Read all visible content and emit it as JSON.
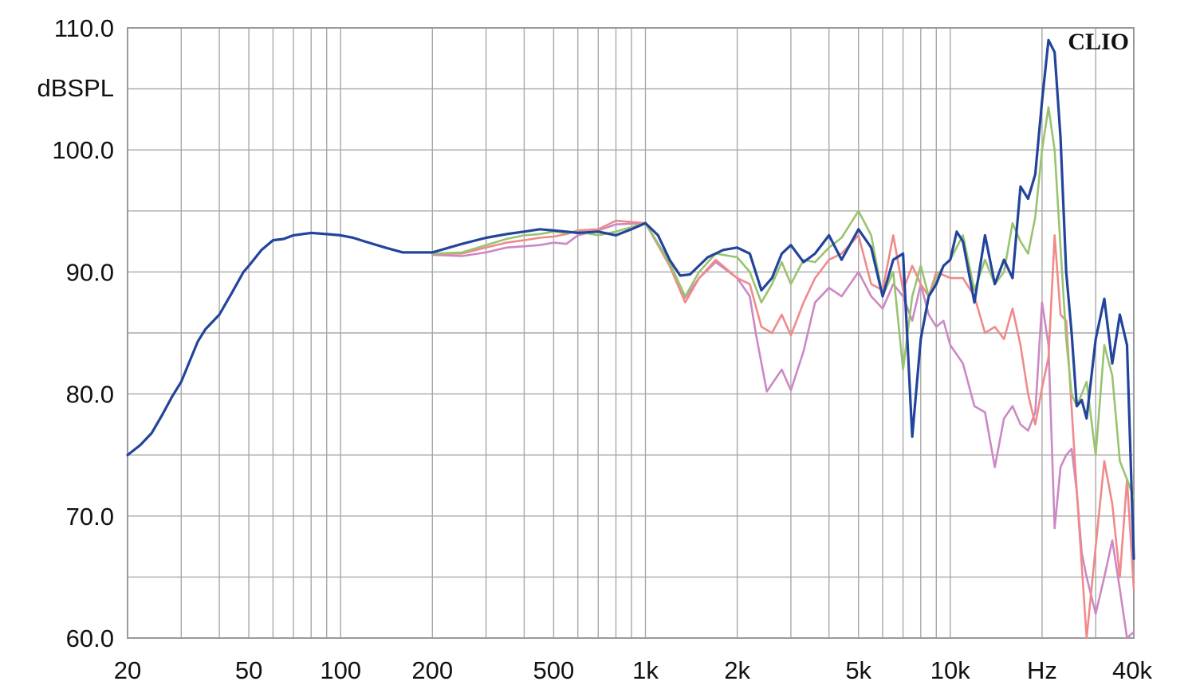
{
  "chart_data": {
    "type": "line",
    "brand": "CLIO",
    "ylabel": "dBSPL",
    "xunit": "Hz",
    "x_scale": "log",
    "xlim": [
      20,
      40000
    ],
    "ylim": [
      60,
      110
    ],
    "grid": true,
    "y_ticks": [
      {
        "value": 110,
        "label": "110.0"
      },
      {
        "value": 100,
        "label": "100.0"
      },
      {
        "value": 90,
        "label": "90.0"
      },
      {
        "value": 80,
        "label": "80.0"
      },
      {
        "value": 70,
        "label": "70.0"
      },
      {
        "value": 60,
        "label": "60.0"
      }
    ],
    "y_grid": [
      60,
      65,
      70,
      75,
      80,
      85,
      90,
      95,
      100,
      105,
      110
    ],
    "x_ticks": [
      {
        "value": 20,
        "label": "20"
      },
      {
        "value": 50,
        "label": "50"
      },
      {
        "value": 100,
        "label": "100"
      },
      {
        "value": 200,
        "label": "200"
      },
      {
        "value": 500,
        "label": "500"
      },
      {
        "value": 1000,
        "label": "1k"
      },
      {
        "value": 2000,
        "label": "2k"
      },
      {
        "value": 5000,
        "label": "5k"
      },
      {
        "value": 10000,
        "label": "10k"
      },
      {
        "value": 20000,
        "label": "Hz"
      },
      {
        "value": 40000,
        "label": "40k"
      }
    ],
    "x_grid": [
      20,
      30,
      40,
      50,
      60,
      70,
      80,
      90,
      100,
      200,
      300,
      400,
      500,
      600,
      700,
      800,
      900,
      1000,
      2000,
      3000,
      4000,
      5000,
      6000,
      7000,
      8000,
      9000,
      10000,
      20000,
      30000,
      40000
    ],
    "series": [
      {
        "color": "#cc88c4",
        "x": [
          200,
          250,
          300,
          350,
          400,
          450,
          500,
          550,
          600,
          700,
          800,
          1000,
          1200,
          1350,
          1500,
          1700,
          2000,
          2200,
          2300,
          2500,
          2800,
          3000,
          3300,
          3600,
          4000,
          4400,
          5000,
          5500,
          6000,
          6500,
          7000,
          7500,
          8000,
          8500,
          9000,
          9500,
          10000,
          11000,
          12000,
          13000,
          14000,
          15000,
          16000,
          17000,
          18000,
          19000,
          20000,
          21000,
          22000,
          23000,
          24000,
          25000,
          26000,
          27000,
          28000,
          30000,
          32000,
          34000,
          36000,
          38000,
          40000
        ],
        "y": [
          91.4,
          91.3,
          91.6,
          92.0,
          92.1,
          92.2,
          92.4,
          92.3,
          93.0,
          93.4,
          93.9,
          94.0,
          90.8,
          87.9,
          89.5,
          90.8,
          89.5,
          88.0,
          85.0,
          80.2,
          82.0,
          80.3,
          83.5,
          87.5,
          88.7,
          88.0,
          90.0,
          88.0,
          87.0,
          89.0,
          88.0,
          86.0,
          89.0,
          86.5,
          85.5,
          86.0,
          84.0,
          82.5,
          79.0,
          78.5,
          74.0,
          78.0,
          79.0,
          77.5,
          77.0,
          78.5,
          87.5,
          84.0,
          69.0,
          74.0,
          75.0,
          75.5,
          72.0,
          67.0,
          65.0,
          62.0,
          65.0,
          68.0,
          64.0,
          60.0,
          60.5
        ]
      },
      {
        "color": "#f08a8a",
        "x": [
          200,
          250,
          300,
          350,
          400,
          450,
          500,
          550,
          600,
          700,
          800,
          1000,
          1200,
          1350,
          1500,
          1700,
          2000,
          2200,
          2400,
          2600,
          2800,
          3000,
          3300,
          3600,
          4000,
          4400,
          5000,
          5500,
          6000,
          6500,
          7000,
          7500,
          8000,
          8500,
          9000,
          10000,
          11000,
          12000,
          13000,
          14000,
          15000,
          16000,
          17000,
          18000,
          19000,
          20000,
          21000,
          22000,
          23000,
          24000,
          26000,
          28000,
          30000,
          32000,
          34000,
          36000,
          38000,
          40000
        ],
        "y": [
          91.5,
          91.5,
          92.0,
          92.4,
          92.6,
          92.8,
          92.9,
          93.1,
          93.4,
          93.5,
          94.2,
          94.0,
          90.5,
          87.5,
          89.5,
          91.0,
          89.5,
          89.0,
          85.5,
          85.0,
          86.5,
          84.8,
          87.5,
          89.5,
          91.0,
          91.5,
          93.0,
          89.0,
          88.5,
          93.0,
          88.5,
          90.5,
          89.0,
          88.0,
          90.0,
          89.5,
          89.5,
          88.0,
          85.0,
          85.5,
          84.5,
          87.0,
          84.0,
          80.0,
          77.5,
          80.5,
          83.0,
          93.0,
          86.5,
          86.0,
          72.0,
          60.0,
          67.5,
          74.5,
          71.0,
          65.0,
          73.0,
          64.0
        ]
      },
      {
        "color": "#98c470",
        "x": [
          200,
          250,
          300,
          350,
          400,
          450,
          500,
          550,
          600,
          700,
          800,
          1000,
          1200,
          1350,
          1500,
          1700,
          2000,
          2200,
          2400,
          2600,
          2800,
          3000,
          3300,
          3600,
          4000,
          4400,
          5000,
          5500,
          6000,
          6500,
          7000,
          7500,
          8000,
          8500,
          9000,
          9500,
          10000,
          11000,
          12000,
          13000,
          14000,
          15000,
          16000,
          17000,
          18000,
          19000,
          20000,
          21000,
          22000,
          23000,
          24000,
          25000,
          26000,
          28000,
          30000,
          32000,
          34000,
          36000,
          38000,
          40000
        ],
        "y": [
          91.5,
          91.6,
          92.2,
          92.7,
          93.0,
          93.1,
          93.3,
          93.2,
          93.3,
          93.0,
          93.3,
          94.0,
          90.7,
          88.0,
          90.0,
          91.5,
          91.2,
          90.0,
          87.5,
          89.0,
          90.8,
          89.0,
          91.0,
          90.8,
          92.0,
          92.8,
          95.0,
          93.0,
          88.0,
          90.0,
          82.0,
          88.0,
          90.5,
          88.0,
          89.5,
          90.5,
          91.0,
          93.0,
          88.5,
          91.0,
          89.0,
          90.0,
          94.0,
          92.5,
          91.5,
          94.5,
          100.0,
          103.5,
          100.0,
          92.0,
          84.5,
          80.0,
          79.0,
          81.0,
          75.0,
          84.0,
          81.5,
          74.5,
          73.0,
          71.5
        ]
      },
      {
        "color": "#22449a",
        "x": [
          20,
          22,
          24,
          26,
          28,
          30,
          32,
          34,
          36,
          40,
          44,
          48,
          50,
          55,
          60,
          65,
          70,
          80,
          90,
          100,
          110,
          120,
          140,
          160,
          180,
          200,
          250,
          300,
          350,
          400,
          450,
          500,
          550,
          600,
          700,
          800,
          900,
          1000,
          1100,
          1200,
          1300,
          1400,
          1600,
          1800,
          2000,
          2200,
          2400,
          2600,
          2800,
          3000,
          3300,
          3600,
          4000,
          4400,
          5000,
          5500,
          6000,
          6500,
          7000,
          7500,
          8000,
          8500,
          9000,
          9500,
          10000,
          10500,
          11000,
          12000,
          13000,
          14000,
          15000,
          16000,
          17000,
          18000,
          19000,
          20000,
          21000,
          22000,
          23000,
          24000,
          25000,
          26000,
          27000,
          28000,
          30000,
          32000,
          34000,
          36000,
          38000,
          40000
        ],
        "y": [
          75.0,
          75.8,
          76.8,
          78.3,
          79.8,
          81.0,
          82.7,
          84.3,
          85.3,
          86.5,
          88.3,
          90.0,
          90.5,
          91.8,
          92.6,
          92.7,
          93.0,
          93.2,
          93.1,
          93.0,
          92.8,
          92.5,
          92.0,
          91.6,
          91.6,
          91.6,
          92.3,
          92.8,
          93.1,
          93.3,
          93.5,
          93.4,
          93.3,
          93.2,
          93.3,
          93.0,
          93.5,
          94.0,
          93.0,
          91.0,
          89.7,
          89.8,
          91.2,
          91.8,
          92.0,
          91.5,
          88.5,
          89.5,
          91.5,
          92.2,
          90.8,
          91.5,
          93.0,
          91.0,
          93.5,
          92.0,
          88.0,
          91.0,
          91.5,
          76.5,
          84.5,
          88.0,
          89.0,
          90.5,
          91.0,
          93.3,
          92.5,
          87.5,
          93.0,
          89.0,
          91.0,
          89.5,
          97.0,
          96.0,
          98.0,
          104.0,
          109.0,
          108.0,
          101.0,
          90.0,
          85.0,
          79.0,
          79.5,
          78.0,
          84.5,
          87.8,
          82.5,
          86.5,
          84.0,
          66.5
        ]
      }
    ]
  }
}
